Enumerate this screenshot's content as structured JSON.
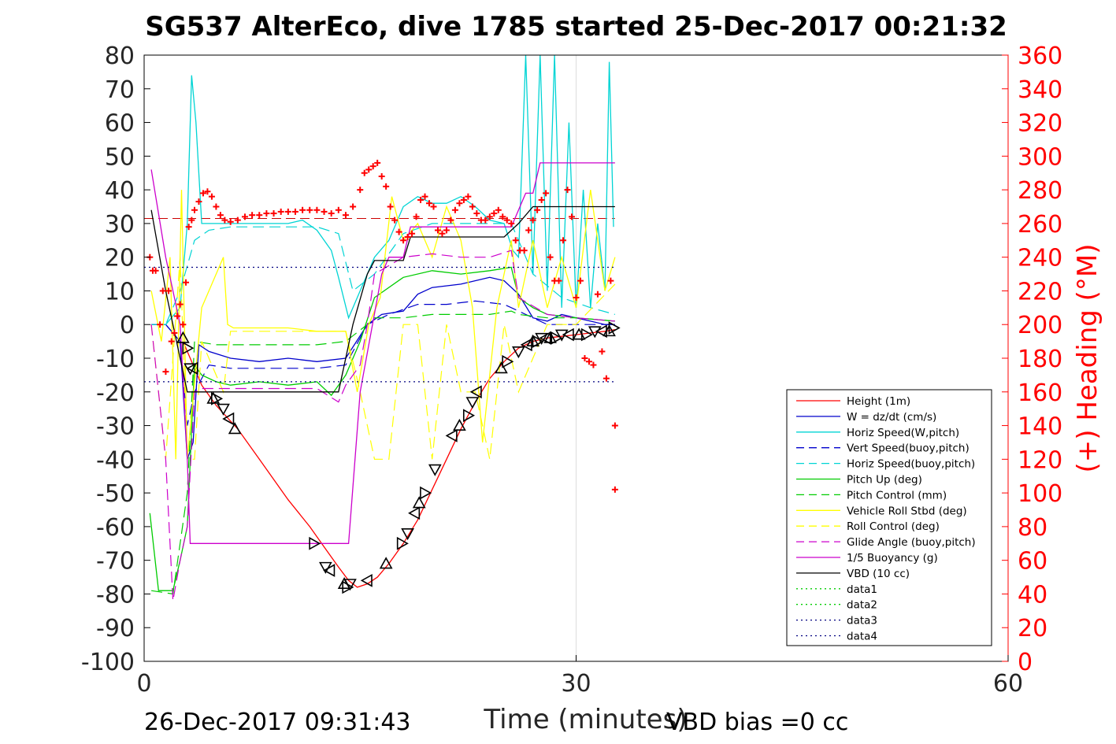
{
  "title": "SG537 AlterEco, dive 1785 started 25-Dec-2017 00:21:32",
  "footer": {
    "left_timestamp": "26-Dec-2017 09:31:43",
    "right_note": "VBD bias =0 cc"
  },
  "chart_data": {
    "type": "line",
    "xlabel": "Time (minutes)",
    "xlim": [
      0,
      60
    ],
    "xticks": [
      0,
      30,
      60
    ],
    "ylim_left": [
      -100,
      80
    ],
    "yticks_left": [
      80,
      70,
      60,
      50,
      40,
      30,
      20,
      10,
      0,
      -10,
      -20,
      -30,
      -40,
      -50,
      -60,
      -70,
      -80,
      -90,
      -100
    ],
    "ylabel_right": "(+) Heading (°M)",
    "ylim_right": [
      0,
      360
    ],
    "yticks_right": [
      360,
      340,
      320,
      300,
      280,
      260,
      240,
      220,
      200,
      180,
      160,
      140,
      120,
      100,
      80,
      60,
      40,
      20,
      0
    ],
    "right_axis_color": "#ff0000",
    "grid_x_at": [
      30
    ],
    "legend_position": "lower-right",
    "series": [
      {
        "name": "Height (1m)",
        "color": "#ff0000",
        "style": "solid",
        "x": [
          2.7,
          3.2,
          4.0,
          5.0,
          6.5,
          8.0,
          10.0,
          11.5,
          12.5,
          13.5,
          14.2,
          14.8,
          15.5,
          16.2,
          17.0,
          18.0,
          19.0,
          20.0,
          21.0,
          22.0,
          23.0,
          24.0,
          25.0,
          26.0,
          27.0,
          28.0,
          29.0,
          30.0,
          31.0,
          32.0,
          32.7
        ],
        "values": [
          -5,
          -10,
          -18,
          -24,
          -31,
          -40,
          -52,
          -60,
          -66,
          -72,
          -76,
          -78,
          -77,
          -75,
          -71,
          -65,
          -58,
          -49,
          -40,
          -31,
          -23,
          -16,
          -11,
          -7,
          -5,
          -4,
          -3.5,
          -3,
          -2.5,
          -2,
          -1.5
        ]
      },
      {
        "name": "W = dz/dt (cm/s)",
        "color": "#0000cc",
        "style": "solid",
        "x": [
          0.5,
          1.5,
          2.5,
          3.0,
          3.4,
          3.8,
          4.5,
          6,
          8,
          10,
          12,
          14,
          15.5,
          16.5,
          18,
          19,
          20,
          22,
          24,
          25,
          26,
          27,
          28,
          29,
          30,
          31,
          32,
          32.7
        ],
        "values": [
          0,
          0,
          -5,
          -40,
          -35,
          -6,
          -8,
          -10,
          -11,
          -10,
          -11,
          -10,
          0,
          3,
          4,
          9,
          11,
          12,
          14,
          13,
          9,
          2,
          1,
          3,
          2,
          1,
          0,
          0
        ]
      },
      {
        "name": "Horiz Speed(W,pitch)",
        "color": "#00d4d4",
        "style": "solid",
        "x": [
          0.5,
          1.5,
          2.5,
          3.0,
          3.3,
          3.6,
          4.0,
          5.0,
          6.0,
          8.0,
          10,
          11,
          12,
          13,
          13.5,
          14.2,
          15,
          16,
          17,
          18,
          19,
          20,
          21,
          22,
          23,
          24,
          25,
          25.6,
          26,
          26.5,
          27,
          27.5,
          28,
          28.5,
          29,
          29.5,
          30,
          30.5,
          31,
          31.5,
          32,
          32.3,
          32.6
        ],
        "values": [
          0,
          0,
          5,
          30,
          74,
          60,
          30,
          30,
          30,
          30,
          30,
          31,
          28,
          22,
          14,
          2,
          10,
          20,
          25,
          35,
          38,
          36,
          36,
          38,
          35,
          31,
          30,
          22,
          20,
          80,
          15,
          80,
          10,
          80,
          5,
          60,
          5,
          40,
          5,
          30,
          10,
          78,
          29
        ]
      },
      {
        "name": "Vert Speed(buoy,pitch)",
        "color": "#0000cc",
        "style": "dashed",
        "x": [
          0.5,
          1.5,
          2.5,
          3.0,
          3.5,
          4.5,
          6,
          8,
          10,
          12,
          14,
          15.5,
          17,
          19,
          21,
          23,
          25,
          26,
          27,
          28,
          30,
          32.7
        ],
        "values": [
          0,
          0,
          -5,
          -30,
          -20,
          -12,
          -13,
          -13,
          -13,
          -13,
          -12,
          0,
          3,
          6,
          6,
          7,
          6,
          4,
          2,
          0,
          0,
          0
        ]
      },
      {
        "name": "Horiz Speed(buoy,pitch)",
        "color": "#00d4d4",
        "style": "dashed",
        "x": [
          0.5,
          1.5,
          2.5,
          3.5,
          4.5,
          6,
          8,
          10,
          12,
          13.5,
          14.5,
          16,
          18,
          20,
          22,
          24,
          25.5,
          27,
          29,
          31,
          32.7
        ],
        "values": [
          0,
          0,
          10,
          25,
          28,
          29,
          29,
          29,
          29,
          27,
          10,
          15,
          27,
          30,
          30,
          30,
          30,
          15,
          8,
          5,
          3
        ]
      },
      {
        "name": "Pitch Up (deg)",
        "color": "#00cc00",
        "style": "solid",
        "x": [
          0.4,
          1.0,
          2.0,
          2.5,
          3.0,
          3.5,
          4.0,
          5,
          6,
          8,
          10,
          12,
          13,
          14,
          15,
          16,
          18,
          20,
          22,
          24,
          25.5,
          26,
          27,
          28,
          30,
          32.7
        ],
        "values": [
          -56,
          -79,
          -79,
          -70,
          -60,
          -12,
          -15,
          -17,
          -18,
          -17,
          -18,
          -17,
          -21,
          -15,
          -5,
          8,
          14,
          16,
          15,
          16,
          17,
          8,
          5,
          3,
          2,
          1
        ]
      },
      {
        "name": "Pitch Control (mm)",
        "color": "#00cc00",
        "style": "dashed",
        "x": [
          0.5,
          2,
          3,
          3.5,
          5,
          8,
          12,
          14,
          15.5,
          16,
          18,
          20,
          22,
          24,
          25.5,
          26,
          28,
          30,
          32.7
        ],
        "values": [
          -79,
          -80,
          -50,
          -5,
          -6,
          -6,
          -6,
          -5,
          0,
          2,
          2,
          3,
          3,
          3,
          4,
          3,
          2,
          2,
          1
        ]
      },
      {
        "name": "Vehicle Roll Stbd (deg)",
        "color": "#ffff00",
        "style": "solid",
        "x": [
          0.5,
          1.2,
          1.8,
          2.2,
          2.6,
          3.0,
          4.0,
          5.5,
          5.8,
          6.2,
          8,
          10,
          12,
          14,
          14.8,
          15.6,
          16.4,
          17.2,
          18,
          19,
          20,
          21,
          22,
          22.8,
          23.5,
          24.5,
          25.5,
          26,
          27,
          28,
          29,
          30,
          31,
          32,
          32.7
        ],
        "values": [
          10,
          -5,
          20,
          -40,
          40,
          -40,
          5,
          20,
          0,
          -1,
          -1,
          -1,
          -2,
          -2,
          -20,
          0,
          8,
          38,
          25,
          30,
          20,
          35,
          25,
          5,
          -35,
          5,
          25,
          5,
          25,
          5,
          20,
          5,
          40,
          10,
          20
        ]
      },
      {
        "name": "Roll Control (deg)",
        "color": "#ffff00",
        "style": "dashed",
        "x": [
          0.5,
          1.5,
          2.5,
          3.0,
          3.5,
          4,
          5.5,
          6,
          8,
          10,
          12,
          14,
          15,
          16,
          17,
          18,
          19,
          20,
          21,
          22,
          23,
          24,
          25,
          26,
          28,
          30,
          32.7
        ],
        "values": [
          0,
          -40,
          20,
          -40,
          -40,
          -5,
          -20,
          -2,
          -2,
          -2,
          -2,
          -2,
          -20,
          -40,
          -40,
          0,
          0,
          -40,
          0,
          -20,
          -20,
          -40,
          0,
          -20,
          0,
          0,
          12
        ]
      },
      {
        "name": "Glide Angle (buoy,pitch)",
        "color": "#cc00cc",
        "style": "dashed",
        "x": [
          0.5,
          1.5,
          2.0,
          2.5,
          3.0,
          3.5,
          4,
          6,
          8,
          10,
          12,
          13.5,
          14,
          15,
          15.5,
          16,
          18,
          20,
          22,
          24,
          25.5,
          26,
          28,
          30,
          32.7
        ],
        "values": [
          0,
          -40,
          -82,
          -70,
          -60,
          -20,
          -19,
          -19,
          -19,
          -19,
          -19,
          -23,
          -18,
          -12,
          0,
          15,
          20,
          21,
          20,
          20,
          22,
          8,
          3,
          2,
          1
        ]
      },
      {
        "name": "1/5 Buoyancy (g)",
        "color": "#cc00cc",
        "style": "solid",
        "x": [
          0.5,
          1.5,
          2.0,
          2.5,
          3.0,
          3.2,
          4,
          6,
          8,
          10,
          12,
          14.2,
          15,
          16.5,
          17,
          18,
          18.5,
          20,
          22,
          24,
          25.5,
          26.5,
          27,
          27.5,
          28,
          30,
          32.7
        ],
        "values": [
          46,
          20,
          10,
          0,
          -40,
          -65,
          -65,
          -65,
          -65,
          -65,
          -65,
          -65,
          -20,
          15,
          20,
          20,
          29,
          29,
          29,
          29,
          29,
          39,
          39,
          48,
          48,
          48,
          48
        ]
      },
      {
        "name": "VBD (10 cc)",
        "color": "#000000",
        "style": "solid",
        "x": [
          0.5,
          1.5,
          2.5,
          3.0,
          4,
          6,
          8,
          10,
          12,
          13.5,
          14.5,
          15.5,
          16,
          17,
          18,
          18.5,
          19,
          20,
          22,
          24,
          25,
          26,
          27,
          28,
          30,
          32.7
        ],
        "values": [
          34,
          10,
          -10,
          -20,
          -20,
          -20,
          -20,
          -20,
          -20,
          -20,
          0,
          15,
          19,
          19,
          19,
          26,
          26,
          26,
          26,
          26,
          26,
          30,
          35,
          35,
          35,
          35
        ]
      },
      {
        "name": "data1",
        "color": "#00cc00",
        "style": "dotted",
        "x": [],
        "values": []
      },
      {
        "name": "data2",
        "color": "#00cc00",
        "style": "dotted",
        "x": [],
        "values": []
      },
      {
        "name": "data3",
        "color": "#000080",
        "style": "dotted",
        "x": [
          0,
          32.7
        ],
        "values": [
          17,
          17
        ]
      },
      {
        "name": "data4",
        "color": "#000080",
        "style": "dotted",
        "x": [
          0,
          32.7
        ],
        "values": [
          -17,
          -17
        ]
      }
    ],
    "heading_reference": {
      "color": "#cc0000",
      "style": "dashed",
      "value_deg": 263
    },
    "heading_points": {
      "color": "#ff0000",
      "marker": "+",
      "x": [
        0.4,
        0.6,
        0.8,
        1.1,
        1.3,
        1.5,
        1.7,
        1.9,
        2.1,
        2.3,
        2.5,
        2.7,
        2.9,
        3.1,
        3.3,
        3.5,
        3.8,
        4.1,
        4.4,
        4.7,
        5.0,
        5.3,
        5.6,
        6.0,
        6.5,
        7.0,
        7.5,
        8.0,
        8.5,
        9.0,
        9.5,
        10.0,
        10.5,
        11.0,
        11.5,
        12.0,
        12.5,
        13.0,
        13.5,
        14.0,
        14.5,
        15.0,
        15.3,
        15.6,
        15.9,
        16.2,
        16.5,
        16.8,
        17.1,
        17.4,
        17.7,
        18.0,
        18.3,
        18.6,
        18.9,
        19.2,
        19.5,
        19.8,
        20.1,
        20.4,
        20.7,
        21.0,
        21.3,
        21.6,
        21.9,
        22.2,
        22.5,
        22.8,
        23.1,
        23.4,
        23.7,
        24.0,
        24.3,
        24.6,
        24.9,
        25.2,
        25.5,
        25.8,
        26.1,
        26.4,
        26.7,
        27.0,
        27.3,
        27.6,
        27.9,
        28.2,
        28.5,
        28.8,
        29.1,
        29.4,
        29.7,
        30.0,
        30.3,
        30.6,
        30.9,
        31.2,
        31.5,
        31.8,
        32.1,
        32.4,
        32.7,
        32.7
      ],
      "values": [
        240,
        232,
        232,
        200,
        220,
        172,
        220,
        190,
        195,
        205,
        212,
        200,
        225,
        258,
        262,
        268,
        273,
        278,
        279,
        276,
        270,
        265,
        262,
        261,
        262,
        264,
        265,
        265,
        266,
        266,
        267,
        267,
        267,
        268,
        268,
        268,
        267,
        266,
        268,
        265,
        270,
        280,
        290,
        292,
        294,
        296,
        288,
        282,
        270,
        262,
        255,
        250,
        252,
        254,
        264,
        274,
        276,
        272,
        270,
        256,
        254,
        256,
        262,
        268,
        272,
        274,
        276,
        270,
        266,
        262,
        262,
        264,
        266,
        268,
        264,
        262,
        260,
        250,
        244,
        244,
        256,
        262,
        268,
        274,
        278,
        240,
        226,
        226,
        250,
        280,
        264,
        216,
        226,
        180,
        178,
        176,
        218,
        184,
        168,
        226,
        140,
        102
      ]
    },
    "depth_markers": {
      "color": "#000000",
      "marker": "triangle",
      "x": [
        2.7,
        3.0,
        3.2,
        3.4,
        4.8,
        5.0,
        5.5,
        5.9,
        6.3,
        11.8,
        12.6,
        12.9,
        13.9,
        14.1,
        14.3,
        15.5,
        16.8,
        17.9,
        18.3,
        18.8,
        19.1,
        19.5,
        20.2,
        21.4,
        21.9,
        22.5,
        22.8,
        23.1,
        24.8,
        25.2,
        26.0,
        26.6,
        27.0,
        27.3,
        27.6,
        27.9,
        28.2,
        28.6,
        29.0,
        29.5,
        30.2,
        30.7,
        31.3,
        31.8,
        32.3,
        32.6
      ],
      "values": [
        -4,
        -7,
        -13,
        -13,
        -22,
        -22,
        -25,
        -28,
        -31,
        -65,
        -72,
        -73,
        -77,
        -78,
        -77,
        -76,
        -71,
        -65,
        -62,
        -56,
        -53,
        -50,
        -43,
        -33,
        -30,
        -27,
        -23,
        -20,
        -13,
        -11,
        -8,
        -6,
        -5,
        -5,
        -4,
        -4,
        -4,
        -4,
        -3,
        -3,
        -3,
        -3,
        -2,
        -2,
        -2,
        -1
      ]
    }
  }
}
